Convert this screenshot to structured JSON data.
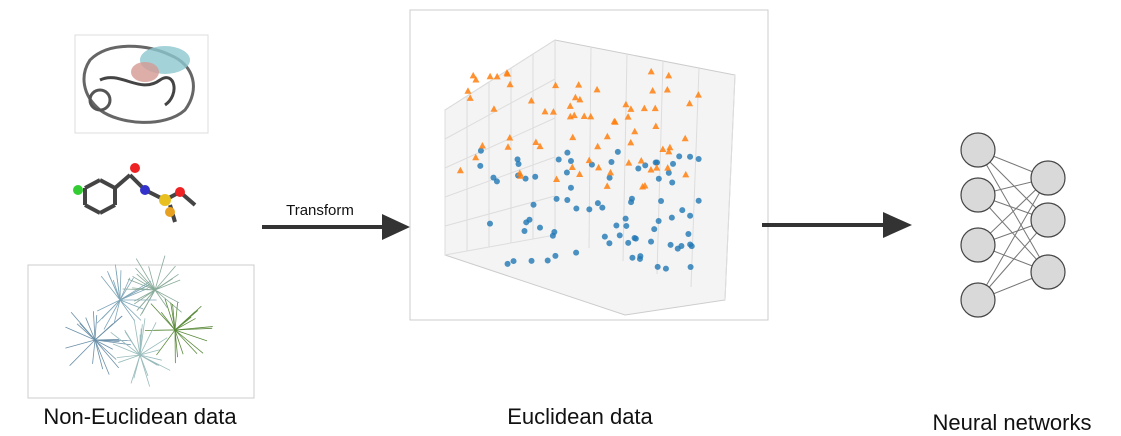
{
  "left": {
    "label": "Non-Euclidean data"
  },
  "arrow": {
    "label": "Transform"
  },
  "middle": {
    "label": "Euclidean data"
  },
  "right": {
    "label": "Neural networks"
  }
}
